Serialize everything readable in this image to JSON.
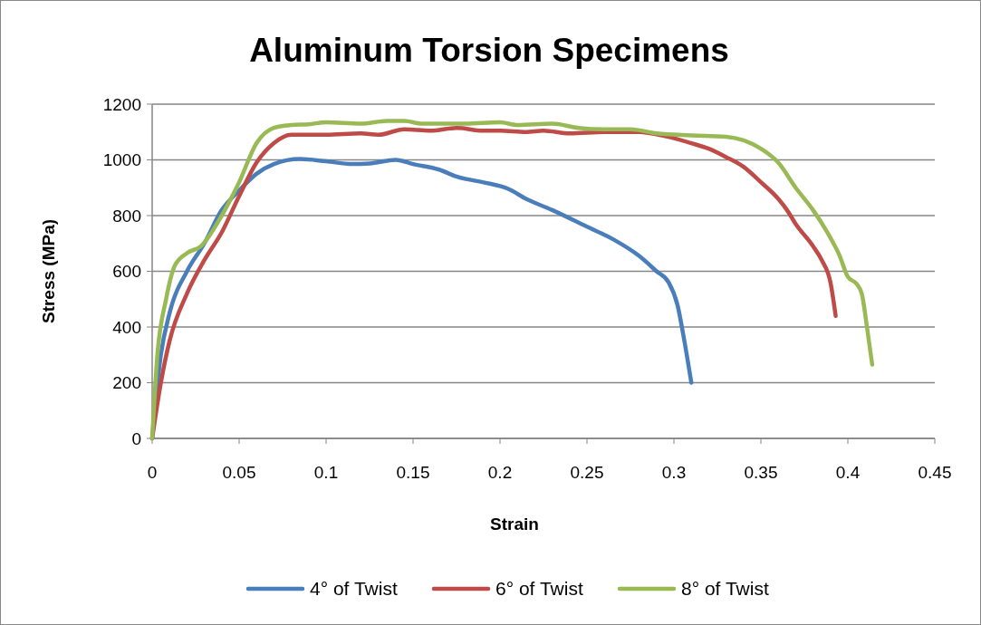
{
  "chart_data": {
    "type": "line",
    "title": "Aluminum Torsion Specimens",
    "xlabel": "Strain",
    "ylabel": "Stress (MPa)",
    "xlim": [
      0,
      0.45
    ],
    "xticks": [
      0,
      0.05,
      0.1,
      0.15,
      0.2,
      0.25,
      0.3,
      0.35,
      0.4,
      0.45
    ],
    "ylim": [
      0,
      1200
    ],
    "yticks": [
      0,
      200,
      400,
      600,
      800,
      1000,
      1200
    ],
    "grid": "y",
    "legend": "bottom",
    "marker": "none",
    "line_style": "solid",
    "series": [
      {
        "name": "4° of Twist",
        "color": "#4a7ebb",
        "x": [
          0,
          0.005,
          0.01,
          0.02,
          0.03,
          0.04,
          0.05,
          0.06,
          0.07,
          0.085,
          0.1,
          0.115,
          0.125,
          0.14,
          0.15,
          0.165,
          0.175,
          0.19,
          0.205,
          0.215,
          0.23,
          0.25,
          0.265,
          0.28,
          0.29,
          0.297,
          0.302,
          0.306,
          0.31
        ],
        "values": [
          0,
          300,
          450,
          600,
          700,
          820,
          890,
          950,
          985,
          1003,
          995,
          985,
          987,
          1000,
          985,
          965,
          940,
          920,
          895,
          860,
          820,
          760,
          715,
          655,
          600,
          560,
          480,
          350,
          200
        ]
      },
      {
        "name": "6° of Twist",
        "color": "#be4b48",
        "x": [
          0,
          0.005,
          0.01,
          0.02,
          0.03,
          0.04,
          0.05,
          0.06,
          0.07,
          0.08,
          0.1,
          0.12,
          0.13,
          0.145,
          0.16,
          0.175,
          0.19,
          0.2,
          0.215,
          0.225,
          0.24,
          0.26,
          0.28,
          0.295,
          0.31,
          0.32,
          0.33,
          0.34,
          0.35,
          0.36,
          0.365,
          0.37,
          0.38,
          0.385,
          0.39,
          0.393
        ],
        "values": [
          0,
          200,
          350,
          520,
          640,
          740,
          870,
          990,
          1060,
          1090,
          1090,
          1095,
          1090,
          1110,
          1105,
          1115,
          1105,
          1105,
          1100,
          1105,
          1095,
          1100,
          1100,
          1085,
          1060,
          1040,
          1010,
          975,
          920,
          860,
          820,
          770,
          690,
          640,
          560,
          440
        ]
      },
      {
        "name": "8° of Twist",
        "color": "#98b954",
        "x": [
          0,
          0.003,
          0.008,
          0.013,
          0.02,
          0.028,
          0.04,
          0.05,
          0.06,
          0.07,
          0.08,
          0.09,
          0.1,
          0.12,
          0.135,
          0.145,
          0.155,
          0.17,
          0.18,
          0.2,
          0.21,
          0.23,
          0.245,
          0.26,
          0.275,
          0.29,
          0.31,
          0.33,
          0.34,
          0.35,
          0.36,
          0.37,
          0.38,
          0.39,
          0.395,
          0.4,
          0.405,
          0.408,
          0.411,
          0.414
        ],
        "values": [
          0,
          300,
          500,
          620,
          665,
          690,
          800,
          920,
          1060,
          1115,
          1125,
          1128,
          1135,
          1130,
          1140,
          1140,
          1130,
          1130,
          1130,
          1135,
          1125,
          1130,
          1115,
          1110,
          1110,
          1095,
          1088,
          1083,
          1070,
          1040,
          990,
          900,
          820,
          720,
          660,
          580,
          555,
          520,
          400,
          265
        ]
      }
    ]
  }
}
